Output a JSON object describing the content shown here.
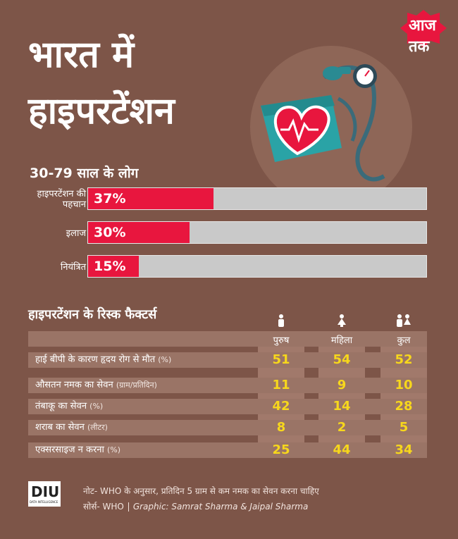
{
  "header": {
    "title_line1": "भारत में",
    "title_line2": "हाइपरटेंशन",
    "brand": "आज तक"
  },
  "chart_data": [
    {
      "type": "bar",
      "title": "30-79 साल के लोग",
      "categories": [
        "हाइपरटेंशन की पहचान",
        "इलाज",
        "नियंत्रित"
      ],
      "values": [
        37,
        30,
        15
      ],
      "value_labels": [
        "37%",
        "30%",
        "15%"
      ],
      "ylim": [
        0,
        100
      ],
      "colors": {
        "bar": "#e8163e",
        "track": "#c9c9c9"
      }
    },
    {
      "type": "table",
      "title": "हाइपरटेंशन के रिस्क फैक्टर्स",
      "columns": [
        "पुरुष",
        "महिला",
        "कुल"
      ],
      "rows": [
        {
          "label": "हाई बीपी के कारण हृदय रोग से मौत",
          "unit": "(%)",
          "values": [
            "51",
            "54",
            "52"
          ]
        },
        {
          "label": "औसतन नमक का सेवन",
          "unit": "(ग्राम/प्रतिदिन)",
          "values": [
            "11",
            "9",
            "10"
          ]
        },
        {
          "label": "तंबाकू का सेवन",
          "unit": "(%)",
          "values": [
            "42",
            "14",
            "28"
          ]
        },
        {
          "label": "शराब का सेवन",
          "unit": "(लीटर)",
          "values": [
            "8",
            "2",
            "5"
          ]
        },
        {
          "label": "एक्सरसाइज न करना",
          "unit": "(%)",
          "values": [
            "25",
            "44",
            "34"
          ]
        }
      ],
      "colors": {
        "value": "#f7d71c"
      }
    }
  ],
  "footer": {
    "logo": "DIU",
    "logo_sub": "DATA INTELLIGENCE UNIT",
    "note": "नोट- WHO के अनुसार, प्रतिदिन 5 ग्राम से कम नमक का सेवन करना चाहिए",
    "source": "सोर्स- WHO",
    "credit": "Graphic: Samrat Sharma & Jaipal Sharma"
  },
  "colors": {
    "background": "#7d5548",
    "accent": "#e8163e",
    "highlight": "#f7d71c"
  }
}
